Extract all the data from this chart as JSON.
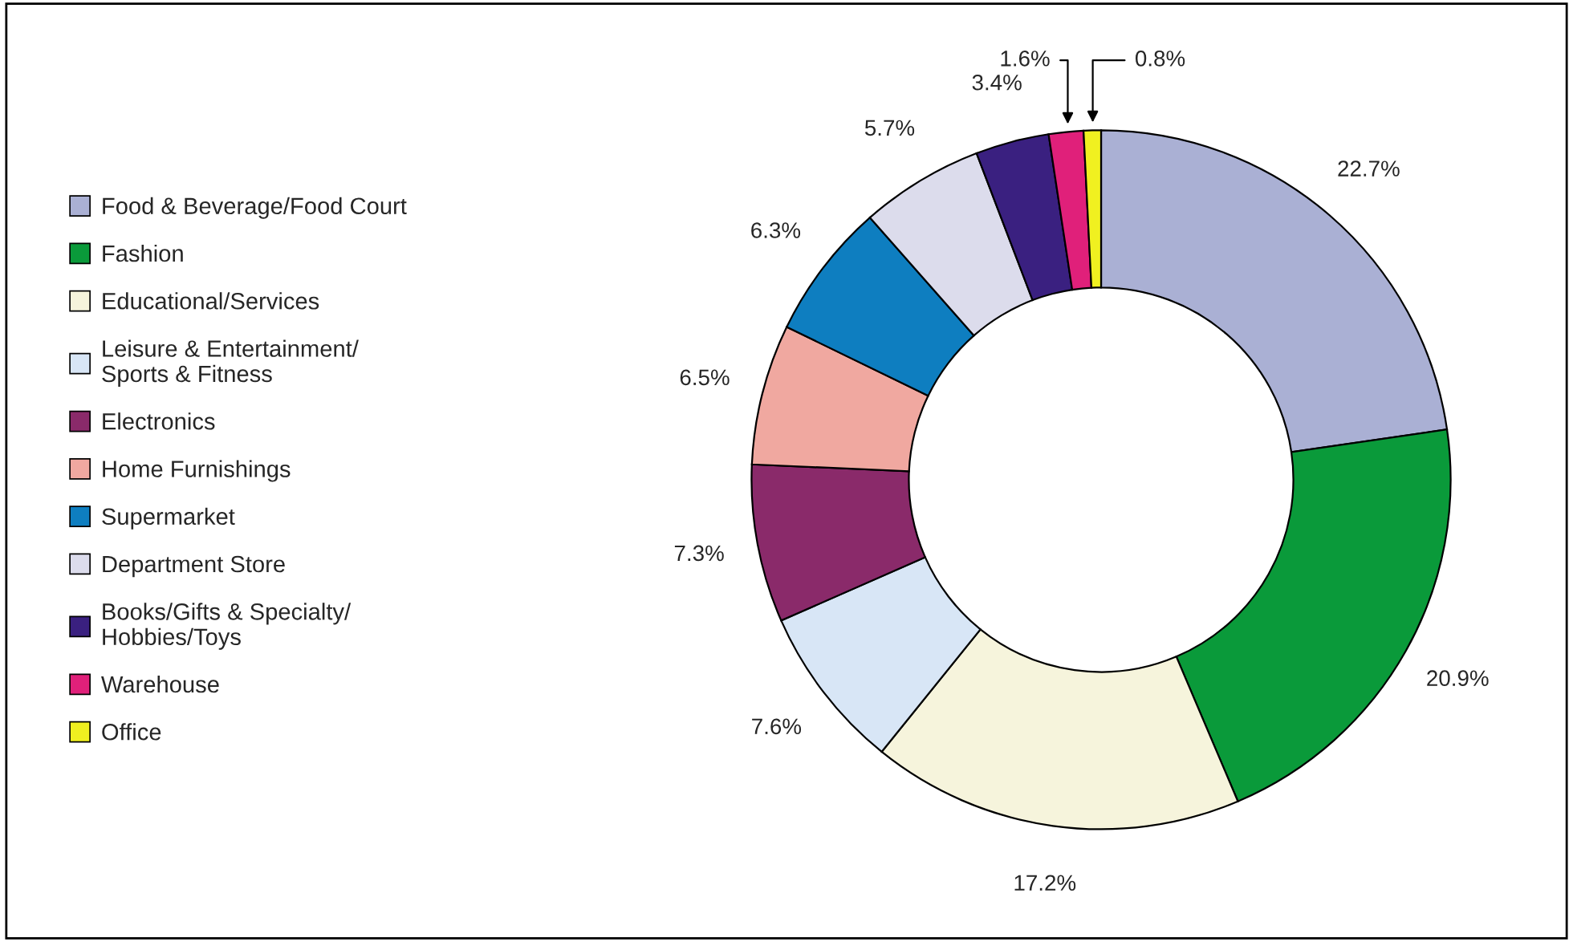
{
  "chart_data": {
    "type": "donut",
    "categories": [
      "Food & Beverage/Food Court",
      "Fashion",
      "Educational/Services",
      "Leisure & Entertainment/\nSports & Fitness",
      "Electronics",
      "Home Furnishings",
      "Supermarket",
      "Department Store",
      "Books/Gifts & Specialty/\nHobbies/Toys",
      "Warehouse",
      "Office"
    ],
    "values": [
      22.7,
      20.9,
      17.2,
      7.6,
      7.3,
      6.5,
      6.3,
      5.7,
      3.4,
      1.6,
      0.8
    ],
    "value_labels": [
      "22.7%",
      "20.9%",
      "17.2%",
      "7.6%",
      "7.3%",
      "6.5%",
      "6.3%",
      "5.7%",
      "3.4%",
      "1.6%",
      "0.8%"
    ],
    "colors": [
      "#aab0d4",
      "#0a9a3a",
      "#f6f4dc",
      "#d8e6f6",
      "#8a2a6a",
      "#f0a8a0",
      "#0e7ec0",
      "#dcdcec",
      "#3a2080",
      "#e0207a",
      "#f0f020"
    ],
    "legend": "left"
  }
}
